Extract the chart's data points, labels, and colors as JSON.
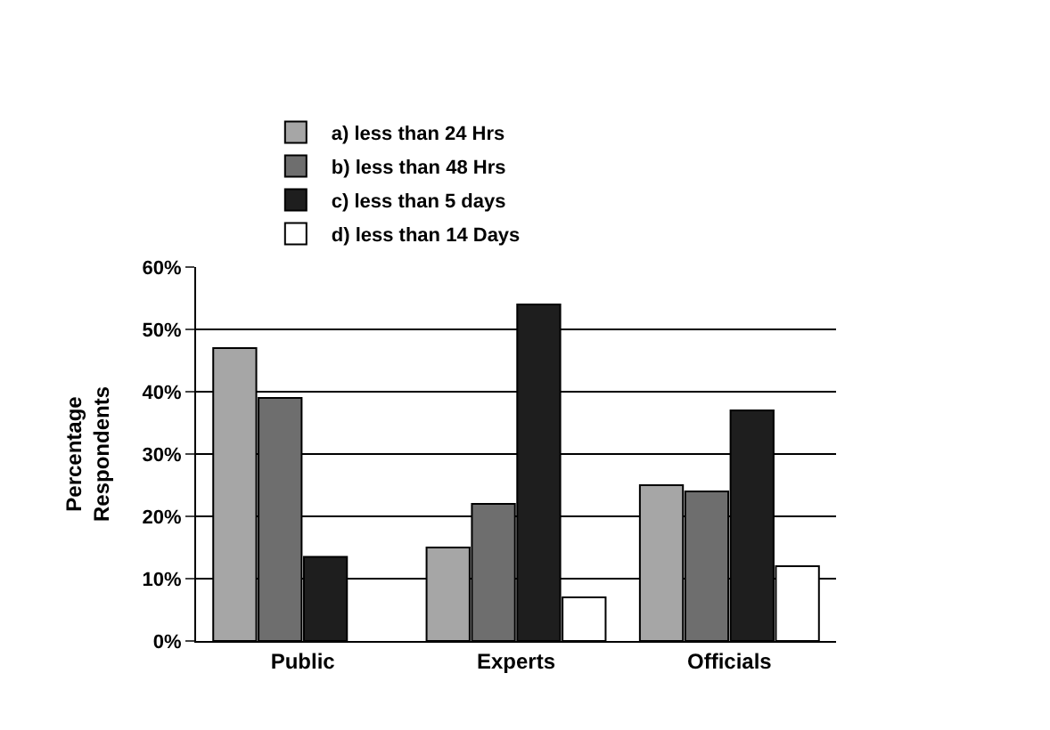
{
  "chart_data": {
    "type": "bar",
    "ylabel": "Percentage\nRespondents",
    "categories": [
      "Public",
      "Experts",
      "Officials"
    ],
    "series": [
      {
        "name": "a) less than 24 Hrs",
        "color": "#a6a6a6",
        "values": [
          47,
          15,
          25
        ]
      },
      {
        "name": "b) less than 48 Hrs",
        "color": "#6e6e6e",
        "values": [
          39,
          22,
          24
        ]
      },
      {
        "name": "c) less than 5 days",
        "color": "#1e1e1e",
        "values": [
          13.5,
          54,
          37
        ]
      },
      {
        "name": "d) less than 14 Days",
        "color": "#ffffff",
        "values": [
          0,
          7,
          12
        ]
      }
    ],
    "ylim": [
      0,
      60
    ],
    "yticks": [
      {
        "value": 0,
        "label": "0%"
      },
      {
        "value": 10,
        "label": "10%"
      },
      {
        "value": 20,
        "label": "20%"
      },
      {
        "value": 30,
        "label": "30%"
      },
      {
        "value": 40,
        "label": "40%"
      },
      {
        "value": 50,
        "label": "50%"
      },
      {
        "value": 60,
        "label": "60%"
      }
    ],
    "grid": "y",
    "legend": "top"
  }
}
